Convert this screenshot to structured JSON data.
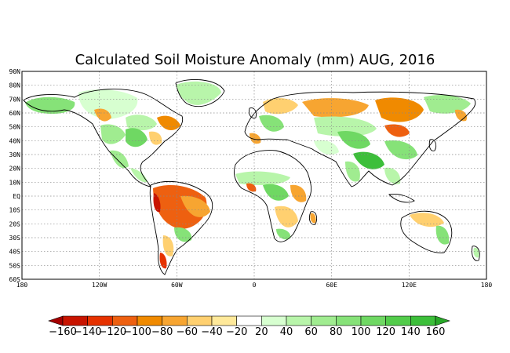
{
  "title": "Calculated Soil Moisture Anomaly (mm) AUG, 2016",
  "map": {
    "lat_labels": [
      "90N",
      "80N",
      "70N",
      "60N",
      "50N",
      "40N",
      "30N",
      "20N",
      "10N",
      "EQ",
      "10S",
      "20S",
      "30S",
      "40S",
      "50S",
      "60S"
    ],
    "lon_labels": [
      "180",
      "120W",
      "60W",
      "0",
      "60E",
      "120E",
      "180"
    ],
    "grid": "dotted",
    "palette": {
      "n160": "#a50000",
      "n140": "#c81400",
      "n120": "#e63200",
      "n100": "#ee6010",
      "n80": "#f08a00",
      "n60": "#f7a531",
      "n40": "#ffd070",
      "n20": "#ffe99a",
      "zero": "#ffffff",
      "p20": "#d7ffd0",
      "p40": "#b8f5aa",
      "p60": "#a0ec90",
      "p80": "#86e278",
      "p100": "#6fd863",
      "p120": "#52cc4a",
      "p140": "#3cbf3a",
      "p160": "#28a828"
    }
  },
  "colorbar": {
    "labels": [
      "−160",
      "−140",
      "−120",
      "−100",
      "−80",
      "−60",
      "−40",
      "−20",
      "20",
      "40",
      "60",
      "80",
      "100",
      "120",
      "140",
      "160"
    ],
    "colors": [
      "#c81400",
      "#e63200",
      "#ee6010",
      "#f08a00",
      "#f7a531",
      "#ffd070",
      "#ffe99a",
      "#ffffff",
      "#d7ffd0",
      "#b8f5aa",
      "#a0ec90",
      "#86e278",
      "#6fd863",
      "#52cc4a",
      "#3cbf3a"
    ],
    "end_low": "#a50000",
    "end_high": "#28a828"
  }
}
